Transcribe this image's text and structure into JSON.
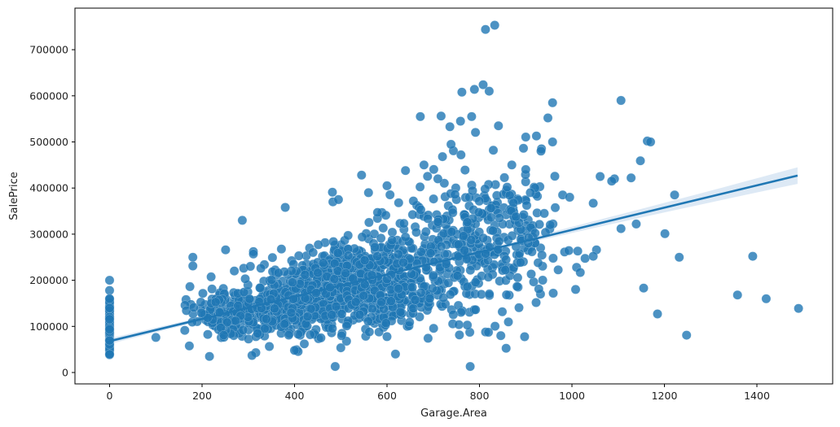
{
  "chart_data": {
    "type": "scatter",
    "title": "",
    "xlabel": "Garage.Area",
    "ylabel": "SalePrice",
    "xlim": [
      -75,
      1565
    ],
    "ylim": [
      -25000,
      790000
    ],
    "xticks": [
      0,
      200,
      400,
      600,
      800,
      1000,
      1200,
      1400
    ],
    "yticks": [
      0,
      100000,
      200000,
      300000,
      400000,
      500000,
      600000,
      700000
    ],
    "grid": false,
    "legend": null,
    "point_color": "#1f77b4",
    "point_alpha": 0.8,
    "regression": {
      "x": [
        0,
        1488
      ],
      "y": [
        68000,
        427000
      ],
      "ci_band_color": "#c6dbef",
      "ci_halfwidth_at_ends": [
        6000,
        18000
      ],
      "line_color": "#1f77b4"
    },
    "notable_points": [
      [
        813,
        744000
      ],
      [
        833,
        753000
      ],
      [
        762,
        608000
      ],
      [
        789,
        614000
      ],
      [
        808,
        624000
      ],
      [
        821,
        610000
      ],
      [
        958,
        585000
      ],
      [
        1106,
        590000
      ],
      [
        783,
        555000
      ],
      [
        717,
        556000
      ],
      [
        736,
        533000
      ],
      [
        759,
        545000
      ],
      [
        841,
        535000
      ],
      [
        948,
        552000
      ],
      [
        958,
        500000
      ],
      [
        933,
        480000
      ],
      [
        1163,
        502000
      ],
      [
        1170,
        500000
      ],
      [
        1148,
        459000
      ],
      [
        1061,
        425000
      ],
      [
        1092,
        420000
      ],
      [
        1128,
        422000
      ],
      [
        1086,
        415000
      ],
      [
        1222,
        385000
      ],
      [
        1046,
        367000
      ],
      [
        1106,
        312000
      ],
      [
        1139,
        322000
      ],
      [
        1201,
        301000
      ],
      [
        1053,
        266000
      ],
      [
        1046,
        252000
      ],
      [
        1232,
        250000
      ],
      [
        1018,
        217000
      ],
      [
        1008,
        180000
      ],
      [
        1155,
        183000
      ],
      [
        1185,
        127000
      ],
      [
        1391,
        252000
      ],
      [
        1358,
        168000
      ],
      [
        1420,
        160000
      ],
      [
        1490,
        139000
      ],
      [
        1248,
        81000
      ],
      [
        287,
        330000
      ],
      [
        380,
        358000
      ],
      [
        482,
        391000
      ],
      [
        545,
        428000
      ],
      [
        483,
        370000
      ],
      [
        495,
        375000
      ],
      [
        180,
        250000
      ],
      [
        180,
        231000
      ],
      [
        251,
        266000
      ],
      [
        311,
        257000
      ],
      [
        100,
        76000
      ],
      [
        488,
        13000
      ],
      [
        780,
        13000
      ],
      [
        216,
        35000
      ],
      [
        308,
        37000
      ],
      [
        400,
        48000
      ],
      [
        672,
        555000
      ],
      [
        680,
        450000
      ],
      [
        720,
        468000
      ],
      [
        760,
        472000
      ],
      [
        830,
        482000
      ],
      [
        870,
        450000
      ],
      [
        900,
        440000
      ],
      [
        920,
        400000
      ],
      [
        600,
        405000
      ],
      [
        640,
        438000
      ],
      [
        560,
        390000
      ],
      [
        710,
        420000
      ],
      [
        980,
        385000
      ],
      [
        995,
        380000
      ],
      [
        940,
        345000
      ],
      [
        910,
        390000
      ],
      [
        860,
        402000
      ]
    ],
    "zero_area_points": {
      "x": 0,
      "y_range": [
        38000,
        200000
      ],
      "count": 81,
      "extra_y": [
        200000,
        178000,
        160000
      ]
    },
    "clusters": [
      {
        "cx": 290,
        "cy": 130000,
        "sx": 55,
        "sy": 25000,
        "n": 260
      },
      {
        "cx": 470,
        "cy": 170000,
        "sx": 60,
        "sy": 40000,
        "n": 320
      },
      {
        "cx": 530,
        "cy": 215000,
        "sx": 45,
        "sy": 40000,
        "n": 200
      },
      {
        "cx": 620,
        "cy": 200000,
        "sx": 60,
        "sy": 50000,
        "n": 160
      },
      {
        "cx": 720,
        "cy": 260000,
        "sx": 80,
        "sy": 75000,
        "n": 180
      },
      {
        "cx": 820,
        "cy": 290000,
        "sx": 70,
        "sy": 85000,
        "n": 150
      },
      {
        "cx": 880,
        "cy": 280000,
        "sx": 50,
        "sy": 80000,
        "n": 70
      },
      {
        "cx": 400,
        "cy": 150000,
        "sx": 60,
        "sy": 45000,
        "n": 120
      },
      {
        "cx": 560,
        "cy": 140000,
        "sx": 70,
        "sy": 35000,
        "n": 80
      }
    ]
  }
}
